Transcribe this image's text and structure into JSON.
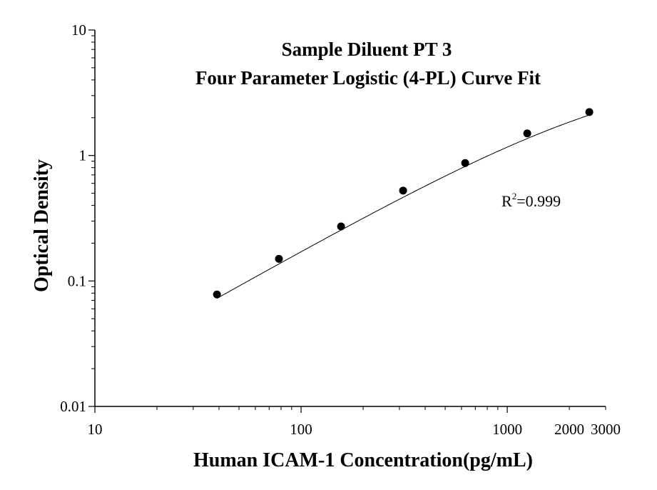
{
  "chart_data": {
    "type": "scatter",
    "title_lines": [
      "Sample Diluent PT 3",
      "Four Parameter Logistic (4-PL) Curve Fit"
    ],
    "xlabel": "Human ICAM-1 Concentration(pg/mL)",
    "ylabel": "Optical Density",
    "x_scale": "log",
    "y_scale": "log",
    "xlim": [
      10,
      3000
    ],
    "ylim": [
      0.01,
      10
    ],
    "x_ticks": [
      10,
      100,
      1000,
      2000,
      3000
    ],
    "x_tick_labels": [
      "10",
      "100",
      "1000",
      "2000",
      "3000"
    ],
    "y_ticks": [
      0.01,
      0.1,
      1,
      10
    ],
    "y_tick_labels": [
      "0.01",
      "0.1",
      "1",
      "10"
    ],
    "grid": false,
    "legend": "none",
    "annotation": {
      "prefix": "R",
      "superscript": "2",
      "suffix": "=0.999"
    },
    "series": [
      {
        "points": [
          {
            "x": 39.1,
            "y": 0.078
          },
          {
            "x": 78.1,
            "y": 0.15
          },
          {
            "x": 156.3,
            "y": 0.272
          },
          {
            "x": 312.5,
            "y": 0.525
          },
          {
            "x": 625,
            "y": 0.87
          },
          {
            "x": 1250,
            "y": 1.5
          },
          {
            "x": 2500,
            "y": 2.22
          }
        ],
        "fit": {
          "model": "4PL",
          "A": 0.0,
          "B": 0.93,
          "C": 3800,
          "D": 5.2
        }
      }
    ],
    "colors": {
      "marker": "#000000",
      "line": "#000000",
      "axis": "#000000"
    }
  }
}
